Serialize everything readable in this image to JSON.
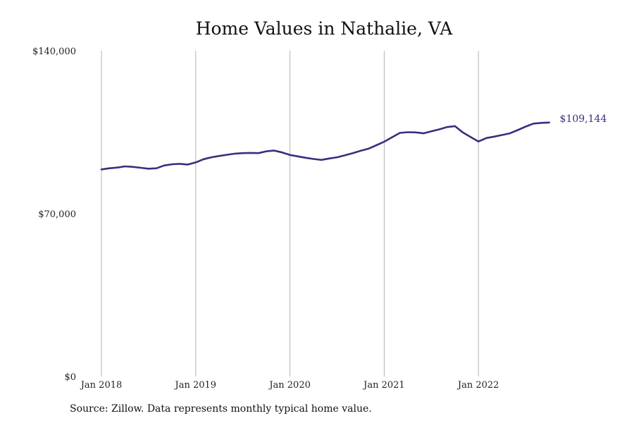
{
  "chart_data": {
    "type": "line",
    "title": "Home Values in Nathalie, VA",
    "xlabel": "",
    "ylabel": "",
    "x_ticks": [
      "Jan 2018",
      "Jan 2019",
      "Jan 2020",
      "Jan 2021",
      "Jan 2022"
    ],
    "y_ticks": [
      "$0",
      "$70,000",
      "$140,000"
    ],
    "ylim": [
      0,
      140000
    ],
    "xlim": [
      "2018-01",
      "2022-10"
    ],
    "grid": "vertical",
    "line_color": "#36307e",
    "end_label": "$109,144",
    "series": [
      {
        "x": [
          "2018-01",
          "2018-02",
          "2018-03",
          "2018-04",
          "2018-05",
          "2018-06",
          "2018-07",
          "2018-08",
          "2018-09",
          "2018-10",
          "2018-11",
          "2018-12",
          "2019-01",
          "2019-02",
          "2019-03",
          "2019-04",
          "2019-05",
          "2019-06",
          "2019-07",
          "2019-08",
          "2019-09",
          "2019-10",
          "2019-11",
          "2019-12",
          "2020-01",
          "2020-02",
          "2020-03",
          "2020-04",
          "2020-05",
          "2020-06",
          "2020-07",
          "2020-08",
          "2020-09",
          "2020-10",
          "2020-11",
          "2020-12",
          "2021-01",
          "2021-02",
          "2021-03",
          "2021-04",
          "2021-05",
          "2021-06",
          "2021-07",
          "2021-08",
          "2021-09",
          "2021-10",
          "2021-11",
          "2021-12",
          "2022-01",
          "2022-02",
          "2022-03",
          "2022-04",
          "2022-05",
          "2022-06",
          "2022-07",
          "2022-08",
          "2022-09",
          "2022-10"
        ],
        "values": [
          89000,
          89500,
          89800,
          90300,
          90100,
          89700,
          89300,
          89500,
          90700,
          91200,
          91400,
          91100,
          92000,
          93400,
          94200,
          94800,
          95300,
          95800,
          96000,
          96100,
          96000,
          96800,
          97100,
          96300,
          95200,
          94600,
          94000,
          93500,
          93100,
          93700,
          94200,
          95100,
          96000,
          97000,
          97900,
          99400,
          100900,
          102800,
          104700,
          105000,
          104900,
          104500,
          105400,
          106200,
          107200,
          107600,
          104900,
          102900,
          101000,
          102500,
          103100,
          103800,
          104500,
          105900,
          107400,
          108700,
          109000,
          109144
        ]
      }
    ]
  },
  "footer": {
    "source": "Source: Zillow. Data represents monthly typical home value."
  }
}
